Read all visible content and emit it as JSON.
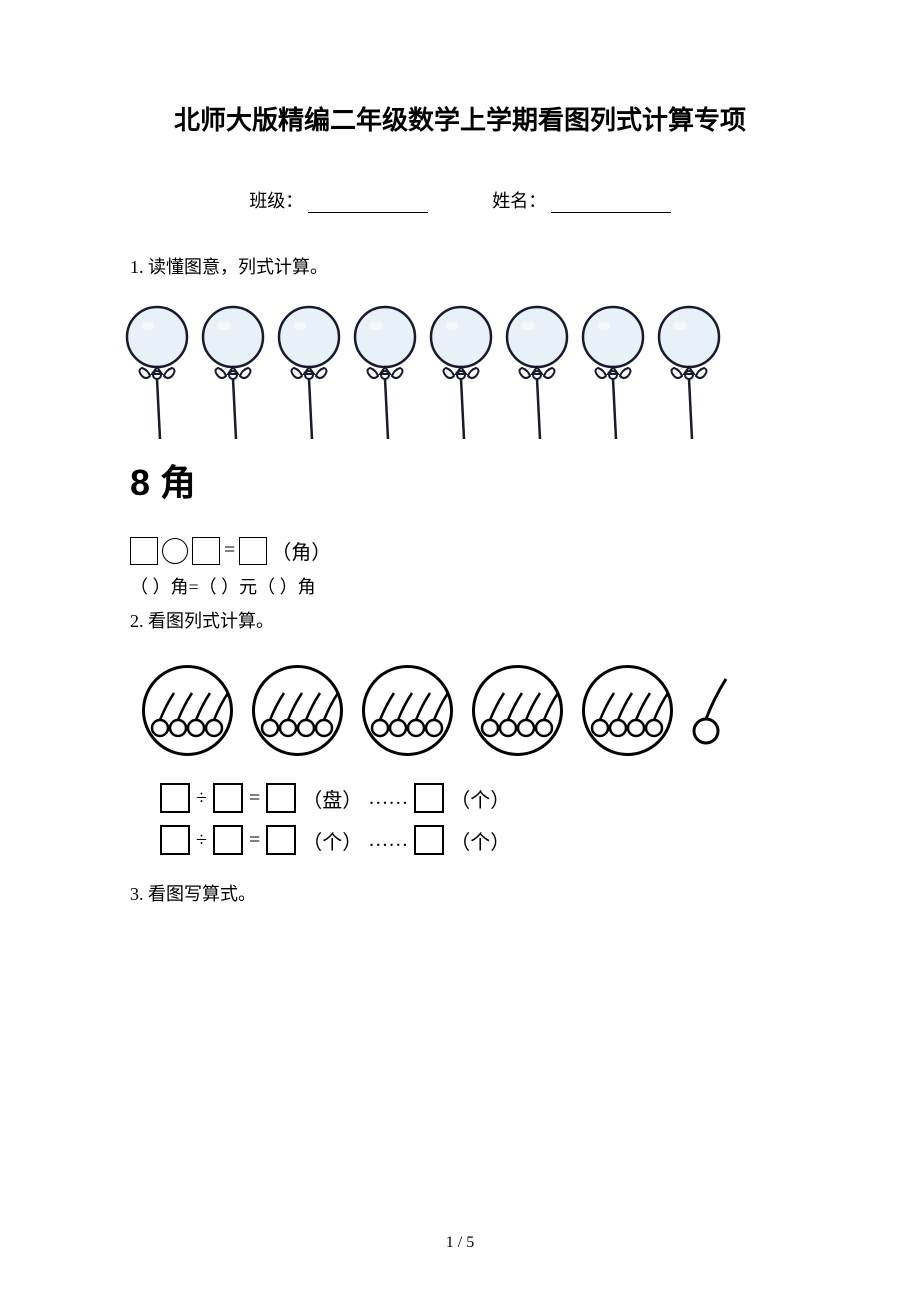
{
  "title": "北师大版精编二年级数学上学期看图列式计算专项",
  "class_label": "班级：",
  "name_label": "姓名：",
  "q1": {
    "prompt": "1. 读懂图意，列式计算。",
    "balloon_count": 8,
    "price": "8 角",
    "unit_jiao": "（角）",
    "conversion": "（    ）角=（    ）元（    ）角"
  },
  "q2": {
    "prompt": "2. 看图列式计算。",
    "plate_count": 5,
    "cherries_per_plate": 4,
    "extra_cherry": 1,
    "div_sign": "÷",
    "eq_sign": "=",
    "dots": "……",
    "unit_pan": "（盘）",
    "unit_ge": "（个）"
  },
  "q3": {
    "prompt": "3. 看图写算式。"
  },
  "page_num": "1 / 5",
  "colors": {
    "balloon_fill": "#e8f0f8",
    "balloon_stroke": "#1a1a2e",
    "cherry_stroke": "#000000"
  }
}
